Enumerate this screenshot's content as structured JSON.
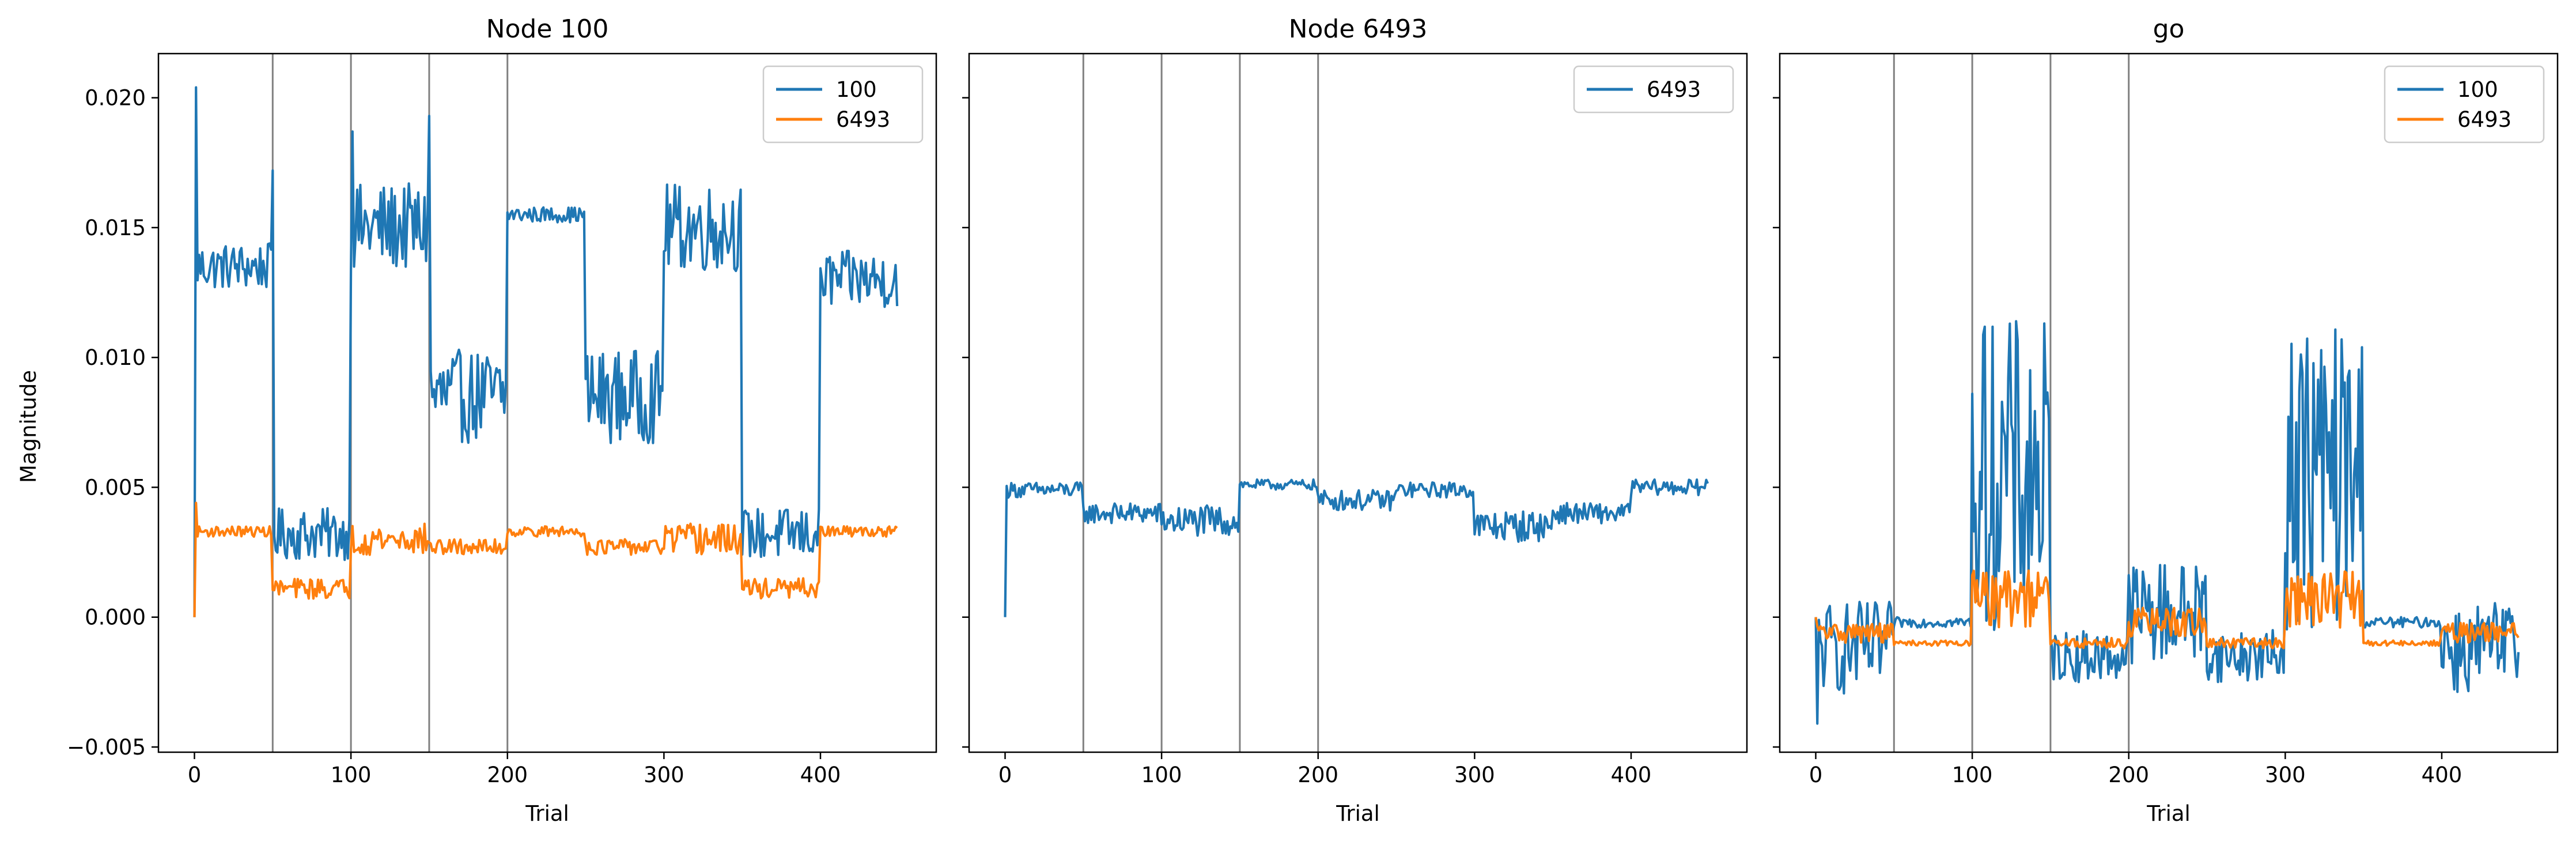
{
  "figure": {
    "ylabel": "Magnitude",
    "xlabel": "Trial"
  },
  "chart_data": [
    {
      "type": "line",
      "title": "Node 100",
      "xlabel": "Trial",
      "ylabel": "Magnitude",
      "xlim": [
        -23,
        474
      ],
      "ylim": [
        -0.0052,
        0.0217
      ],
      "xticks": [
        "0",
        "100",
        "200",
        "300",
        "400"
      ],
      "yticks": [
        "−0.005",
        "0.000",
        "0.005",
        "0.010",
        "0.015",
        "0.020"
      ],
      "vlines": [
        50,
        100,
        150,
        200
      ],
      "legend_position": "top-right",
      "series": [
        {
          "name": "100",
          "color": "#1f77b4",
          "segments": [
            [
              0,
              0,
              0
            ],
            [
              1,
              49,
              0.0135
            ],
            [
              50,
              99,
              0.0032
            ],
            [
              100,
              149,
              0.015
            ],
            [
              150,
              199,
              0.0085
            ],
            [
              200,
              249,
              0.0155
            ],
            [
              250,
              299,
              0.0085
            ],
            [
              300,
              349,
              0.015
            ],
            [
              350,
              399,
              0.0032
            ],
            [
              400,
              449,
              0.013
            ]
          ],
          "amplitudes": [
            0,
            0.0009,
            0.001,
            0.0017,
            0.0018,
            0.0003,
            0.0018,
            0.0017,
            0.001,
            0.0011
          ],
          "spikes": [
            [
              1,
              0.0204
            ],
            [
              50,
              0.0172
            ],
            [
              101,
              0.0187
            ],
            [
              150,
              0.0193
            ]
          ]
        },
        {
          "name": "6493",
          "color": "#ff7f0e",
          "segments": [
            [
              0,
              0,
              0
            ],
            [
              1,
              49,
              0.0033
            ],
            [
              50,
              99,
              0.0011
            ],
            [
              100,
              149,
              0.003
            ],
            [
              150,
              199,
              0.0027
            ],
            [
              200,
              249,
              0.0033
            ],
            [
              250,
              299,
              0.0027
            ],
            [
              300,
              349,
              0.003
            ],
            [
              350,
              399,
              0.0011
            ],
            [
              400,
              449,
              0.0033
            ]
          ],
          "amplitudes": [
            0,
            0.0002,
            0.0004,
            0.0006,
            0.0003,
            0.0002,
            0.0003,
            0.0006,
            0.0004,
            0.0002
          ],
          "spikes": [
            [
              1,
              0.0044
            ]
          ]
        }
      ]
    },
    {
      "type": "line",
      "title": "Node 6493",
      "xlabel": "Trial",
      "xlim": [
        -23,
        474
      ],
      "ylim": [
        -0.0052,
        0.0217
      ],
      "xticks": [
        "0",
        "100",
        "200",
        "300",
        "400"
      ],
      "vlines": [
        50,
        100,
        150,
        200
      ],
      "legend_position": "top-right",
      "series": [
        {
          "name": "6493",
          "color": "#1f77b4",
          "segments": [
            [
              0,
              0,
              0
            ],
            [
              1,
              49,
              0.0049
            ],
            [
              50,
              99,
              0.004
            ],
            [
              100,
              149,
              0.0037
            ],
            [
              150,
              199,
              0.0051
            ],
            [
              200,
              249,
              0.0045
            ],
            [
              250,
              299,
              0.0049
            ],
            [
              300,
              349,
              0.0035
            ],
            [
              350,
              399,
              0.004
            ],
            [
              400,
              449,
              0.005
            ]
          ],
          "amplitudes": [
            0,
            0.0003,
            0.0004,
            0.0006,
            0.0002,
            0.0004,
            0.0003,
            0.0006,
            0.0004,
            0.0003
          ],
          "spikes": []
        }
      ]
    },
    {
      "type": "line",
      "title": "go",
      "xlabel": "Trial",
      "xlim": [
        -23,
        474
      ],
      "ylim": [
        -0.0052,
        0.0217
      ],
      "xticks": [
        "0",
        "100",
        "200",
        "300",
        "400"
      ],
      "vlines": [
        50,
        100,
        150,
        200
      ],
      "legend_position": "top-right",
      "series": [
        {
          "name": "100",
          "color": "#1f77b4",
          "segments": [
            [
              0,
              0,
              0
            ],
            [
              1,
              49,
              -0.0012
            ],
            [
              50,
              99,
              -0.0002
            ],
            [
              100,
              149,
              0.0055
            ],
            [
              150,
              199,
              -0.0015
            ],
            [
              200,
              249,
              0.0002
            ],
            [
              250,
              299,
              -0.0015
            ],
            [
              300,
              349,
              0.0055
            ],
            [
              350,
              399,
              -0.0002
            ],
            [
              400,
              449,
              -0.0012
            ]
          ],
          "amplitudes": [
            0,
            0.0018,
            0.0002,
            0.006,
            0.001,
            0.002,
            0.001,
            0.006,
            0.0002,
            0.0018
          ],
          "spikes": [
            [
              1,
              -0.0041
            ]
          ]
        },
        {
          "name": "6493",
          "color": "#ff7f0e",
          "segments": [
            [
              0,
              0,
              0
            ],
            [
              1,
              49,
              -0.0006
            ],
            [
              50,
              99,
              -0.001
            ],
            [
              100,
              149,
              0.0007
            ],
            [
              150,
              199,
              -0.001
            ],
            [
              200,
              249,
              -0.0002
            ],
            [
              250,
              299,
              -0.001
            ],
            [
              300,
              349,
              0.0007
            ],
            [
              350,
              399,
              -0.001
            ],
            [
              400,
              449,
              -0.0006
            ]
          ],
          "amplitudes": [
            0,
            0.0004,
            0.0001,
            0.0011,
            0.0002,
            0.0006,
            0.0002,
            0.0011,
            0.0001,
            0.0004
          ],
          "spikes": []
        }
      ]
    }
  ]
}
